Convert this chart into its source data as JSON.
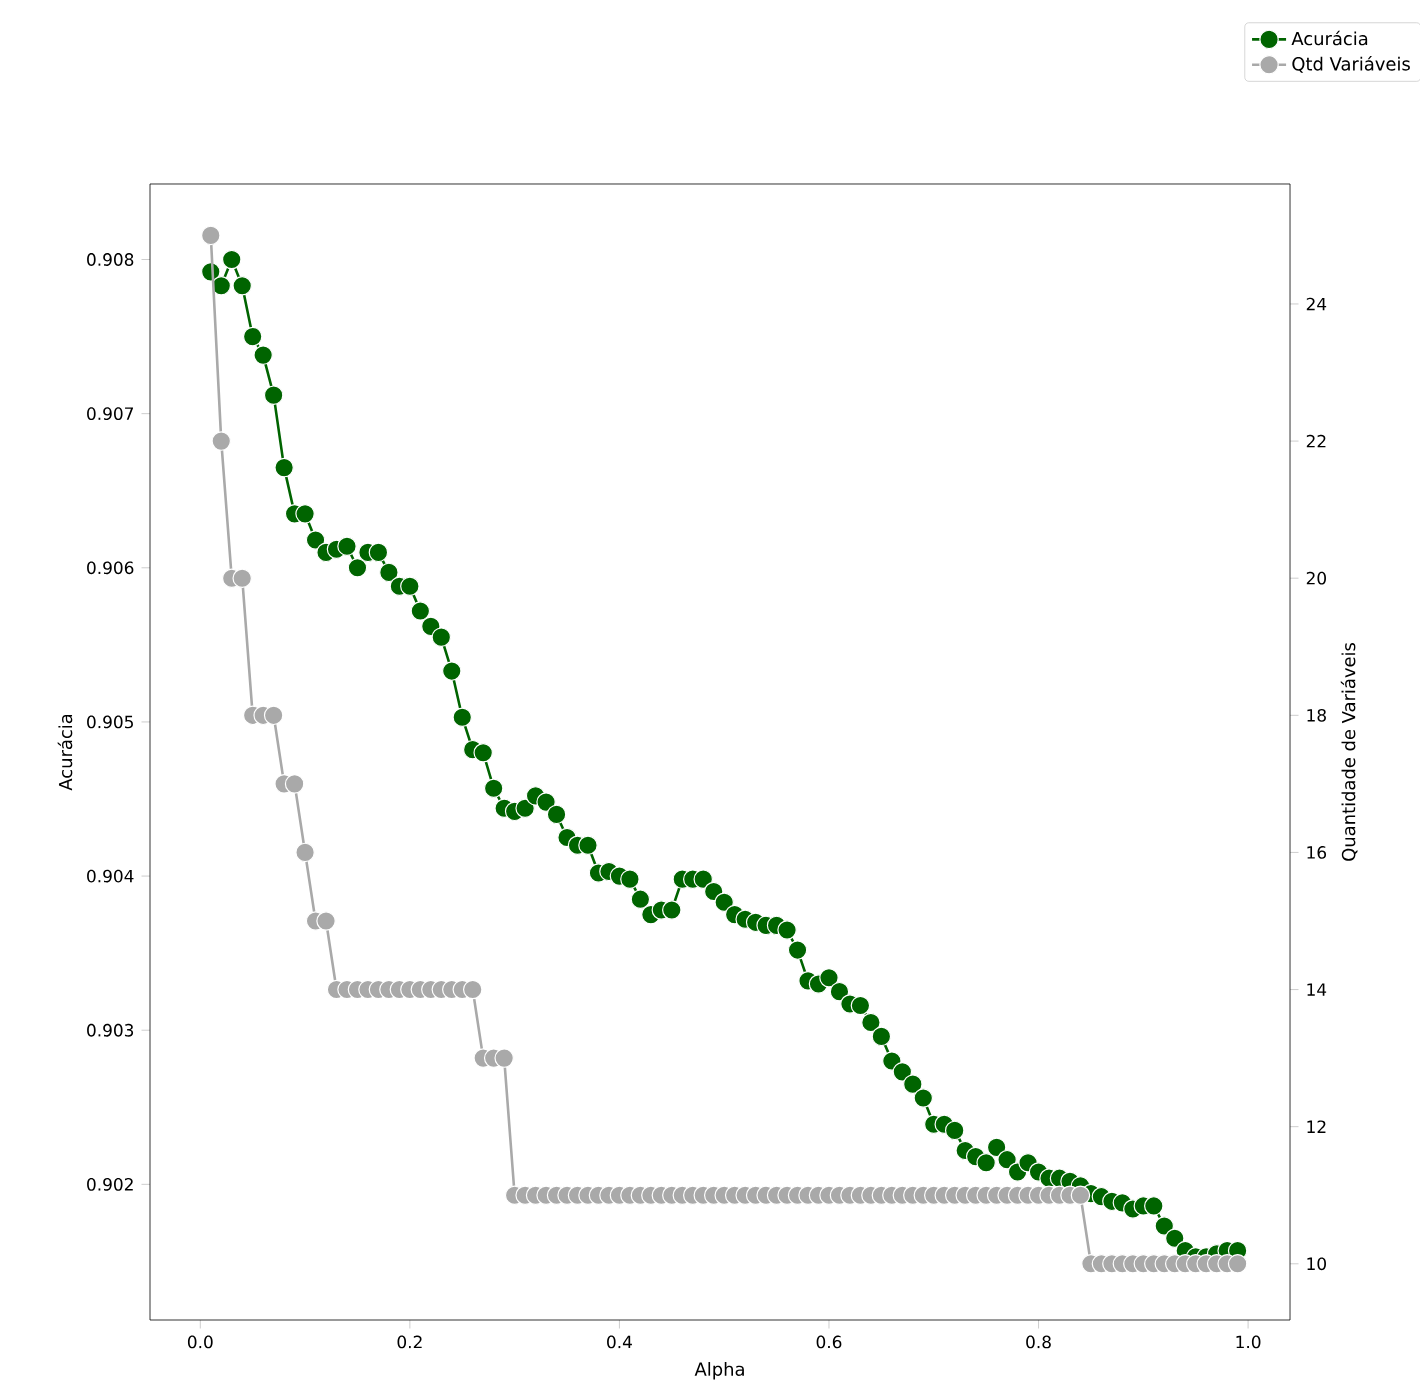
{
  "chart_data": {
    "type": "line",
    "xlabel": "Alpha",
    "ylabel": "Acurácia",
    "y2label": "Quantidade de Variáveis",
    "x": [
      0.01,
      0.02,
      0.03,
      0.04,
      0.05,
      0.06,
      0.07,
      0.08,
      0.09,
      0.1,
      0.11,
      0.12,
      0.13,
      0.14,
      0.15,
      0.16,
      0.17,
      0.18,
      0.19,
      0.2,
      0.21,
      0.22,
      0.23,
      0.24,
      0.25,
      0.26,
      0.27,
      0.28,
      0.29,
      0.3,
      0.31,
      0.32,
      0.33,
      0.34,
      0.35,
      0.36,
      0.37,
      0.38,
      0.39,
      0.4,
      0.41,
      0.42,
      0.43,
      0.44,
      0.45,
      0.46,
      0.47,
      0.48,
      0.49,
      0.5,
      0.51,
      0.52,
      0.53,
      0.54,
      0.55,
      0.56,
      0.57,
      0.58,
      0.59,
      0.6,
      0.61,
      0.62,
      0.63,
      0.64,
      0.65,
      0.66,
      0.67,
      0.68,
      0.69,
      0.7,
      0.71,
      0.72,
      0.73,
      0.74,
      0.75,
      0.76,
      0.77,
      0.78,
      0.79,
      0.8,
      0.81,
      0.82,
      0.83,
      0.84,
      0.85,
      0.86,
      0.87,
      0.88,
      0.89,
      0.9,
      0.91,
      0.92,
      0.93,
      0.94,
      0.95,
      0.96,
      0.97,
      0.98,
      0.99
    ],
    "series": [
      {
        "name": "Acurácia",
        "color": "#006400",
        "values": [
          0.90792,
          0.90783,
          0.908,
          0.90783,
          0.9075,
          0.90738,
          0.90712,
          0.90665,
          0.90635,
          0.90635,
          0.90618,
          0.9061,
          0.90612,
          0.90614,
          0.906,
          0.9061,
          0.9061,
          0.90597,
          0.90588,
          0.90588,
          0.90572,
          0.90562,
          0.90555,
          0.90533,
          0.90503,
          0.90482,
          0.9048,
          0.90457,
          0.90444,
          0.90442,
          0.90444,
          0.90452,
          0.90448,
          0.9044,
          0.90425,
          0.9042,
          0.9042,
          0.90402,
          0.90403,
          0.904,
          0.90398,
          0.90385,
          0.90375,
          0.90378,
          0.90378,
          0.90398,
          0.90398,
          0.90398,
          0.9039,
          0.90383,
          0.90375,
          0.90372,
          0.9037,
          0.90368,
          0.90368,
          0.90365,
          0.90352,
          0.90332,
          0.9033,
          0.90334,
          0.90325,
          0.90317,
          0.90316,
          0.90305,
          0.90296,
          0.9028,
          0.90273,
          0.90265,
          0.90256,
          0.90239,
          0.90239,
          0.90235,
          0.90222,
          0.90218,
          0.90214,
          0.90224,
          0.90216,
          0.90208,
          0.90214,
          0.90208,
          0.90204,
          0.90204,
          0.90202,
          0.90199,
          0.90194,
          0.90192,
          0.90189,
          0.90188,
          0.90184,
          0.90186,
          0.90186,
          0.90173,
          0.90165,
          0.90157,
          0.90153,
          0.90153,
          0.90155,
          0.90157,
          0.90157
        ]
      },
      {
        "name": "Qtd Variáveis",
        "color": "#a9a9a9",
        "axis": "y2",
        "values": [
          25,
          22,
          20,
          20,
          18,
          18,
          18,
          17,
          17,
          16,
          15,
          15,
          14,
          14,
          14,
          14,
          14,
          14,
          14,
          14,
          14,
          14,
          14,
          14,
          14,
          14,
          13,
          13,
          13,
          11,
          11,
          11,
          11,
          11,
          11,
          11,
          11,
          11,
          11,
          11,
          11,
          11,
          11,
          11,
          11,
          11,
          11,
          11,
          11,
          11,
          11,
          11,
          11,
          11,
          11,
          11,
          11,
          11,
          11,
          11,
          11,
          11,
          11,
          11,
          11,
          11,
          11,
          11,
          11,
          11,
          11,
          11,
          11,
          11,
          11,
          11,
          11,
          11,
          11,
          11,
          11,
          11,
          11,
          11,
          10,
          10,
          10,
          10,
          10,
          10,
          10,
          10,
          10,
          10,
          10,
          10,
          10,
          10,
          10
        ]
      }
    ],
    "xlim": [
      -0.048,
      1.04
    ],
    "xticks": [
      {
        "value": 0,
        "label": "0.0"
      },
      0.2,
      0.4,
      0.6,
      0.8,
      {
        "value": 1,
        "label": "1.0"
      }
    ],
    "ylim": [
      0.90112,
      0.90849
    ],
    "yticks": [
      0.902,
      0.903,
      0.904,
      0.905,
      0.906,
      0.907,
      0.908
    ],
    "y2lim": [
      9.18,
      25.75
    ],
    "y2ticks": [
      10,
      12,
      14,
      16,
      18,
      20,
      22,
      24
    ],
    "grid": false,
    "legend": "top right",
    "marker": "circle",
    "line_style": "solid"
  }
}
